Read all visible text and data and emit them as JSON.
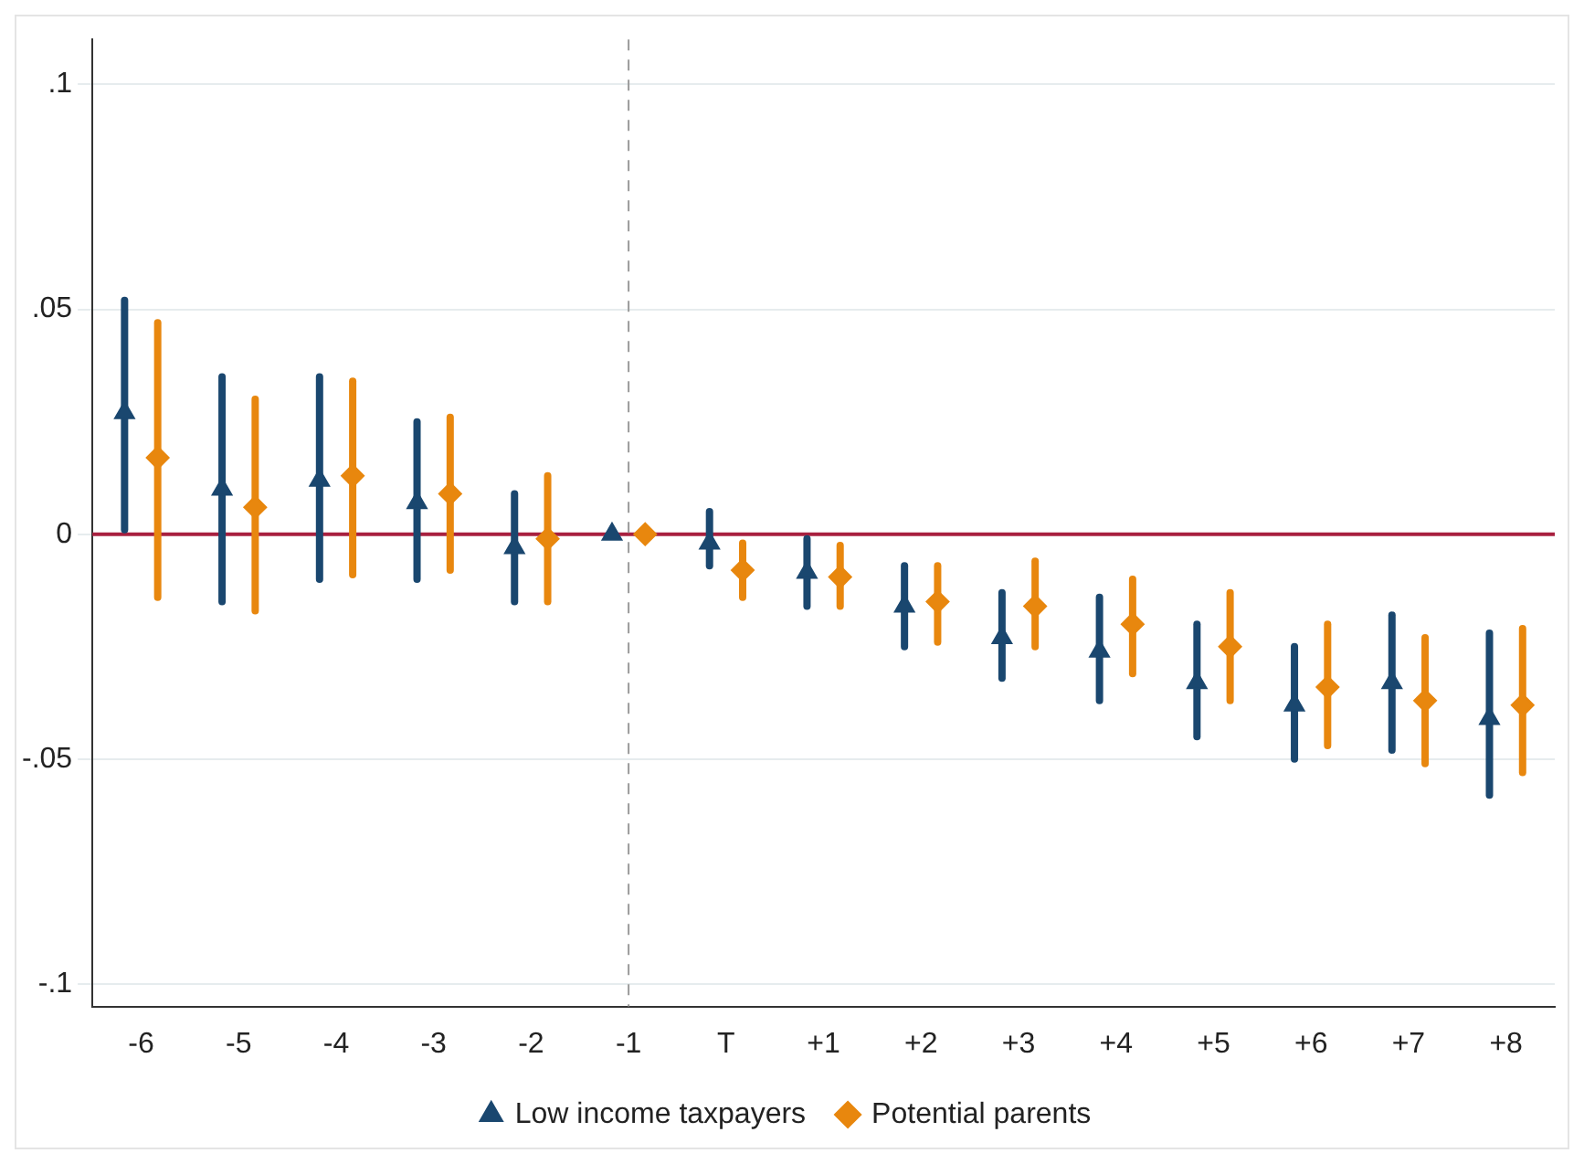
{
  "chart_data": {
    "type": "scatter",
    "categories": [
      "-6",
      "-5",
      "-4",
      "-3",
      "-2",
      "-1",
      "T",
      "+1",
      "+2",
      "+3",
      "+4",
      "+5",
      "+6",
      "+7",
      "+8"
    ],
    "series": [
      {
        "name": "Low income taxpayers",
        "color": "#1a476f",
        "marker": "triangle",
        "values": [
          0.027,
          0.01,
          0.012,
          0.007,
          -0.003,
          0,
          -0.002,
          -0.0085,
          -0.016,
          -0.023,
          -0.026,
          -0.033,
          -0.038,
          -0.033,
          -0.041
        ],
        "errors": [
          [
            0.001,
            0.052
          ],
          [
            -0.015,
            0.035
          ],
          [
            -0.01,
            0.035
          ],
          [
            -0.01,
            0.025
          ],
          [
            -0.015,
            0.009
          ],
          null,
          [
            -0.007,
            0.005
          ],
          [
            -0.016,
            -0.001
          ],
          [
            -0.025,
            -0.007
          ],
          [
            -0.032,
            -0.013
          ],
          [
            -0.037,
            -0.014
          ],
          [
            -0.045,
            -0.02
          ],
          [
            -0.05,
            -0.025
          ],
          [
            -0.048,
            -0.018
          ],
          [
            -0.058,
            -0.022
          ]
        ]
      },
      {
        "name": "Potential parents",
        "color": "#e8870e",
        "marker": "diamond",
        "values": [
          0.017,
          0.006,
          0.013,
          0.009,
          -0.001,
          0,
          -0.008,
          -0.0095,
          -0.015,
          -0.016,
          -0.02,
          -0.025,
          -0.034,
          -0.037,
          -0.038
        ],
        "errors": [
          [
            -0.014,
            0.047
          ],
          [
            -0.017,
            0.03
          ],
          [
            -0.009,
            0.034
          ],
          [
            -0.008,
            0.026
          ],
          [
            -0.015,
            0.013
          ],
          null,
          [
            -0.014,
            -0.002
          ],
          [
            -0.016,
            -0.0025
          ],
          [
            -0.024,
            -0.007
          ],
          [
            -0.025,
            -0.006
          ],
          [
            -0.031,
            -0.01
          ],
          [
            -0.037,
            -0.013
          ],
          [
            -0.047,
            -0.02
          ],
          [
            -0.051,
            -0.023
          ],
          [
            -0.053,
            -0.021
          ]
        ]
      }
    ],
    "ylim": [
      -0.105,
      0.11
    ],
    "yticks": [
      {
        "value": -0.1,
        "label": "-.1"
      },
      {
        "value": -0.05,
        "label": "-.05"
      },
      {
        "value": 0,
        "label": "0"
      },
      {
        "value": 0.05,
        "label": ".05"
      },
      {
        "value": 0.1,
        "label": ".1"
      }
    ],
    "ref_lines": [
      {
        "axis": "y",
        "value": 0,
        "color": "#a8203f",
        "line_style": "solid"
      },
      {
        "axis": "x",
        "value": "-1",
        "color": "#9a9a9a",
        "line_style": "dashed"
      }
    ],
    "grid": "y",
    "legend": "bottom"
  }
}
